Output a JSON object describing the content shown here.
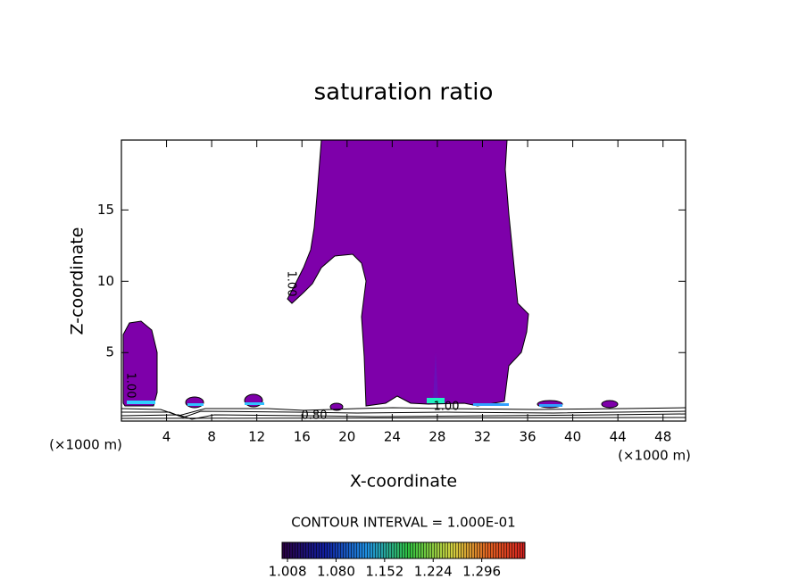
{
  "chart_data": {
    "type": "contour",
    "title": "saturation ratio",
    "x_label": "X-coordinate",
    "y_label": "Z-coordinate",
    "x_unit_left": "(×1000 m)",
    "x_unit_right": "(×1000 m)",
    "xlim": [
      0,
      50
    ],
    "ylim": [
      0.2,
      19.9
    ],
    "xticks": [
      4,
      8,
      12,
      16,
      20,
      24,
      28,
      32,
      36,
      40,
      44,
      48
    ],
    "yticks": [
      5,
      10,
      15
    ],
    "fill_color": "#7e00aa",
    "contour_labels": [
      "1.00",
      "1.00",
      "1.00",
      "0.80"
    ],
    "contour_interval": "CONTOUR INTERVAL = 1.000E-01",
    "colorbar": {
      "clim": [
        1.0,
        1.36
      ],
      "ticks": [
        1.008,
        {
          "value": 1.08,
          "label": "1.080"
        },
        1.152,
        1.224,
        1.296
      ]
    }
  }
}
